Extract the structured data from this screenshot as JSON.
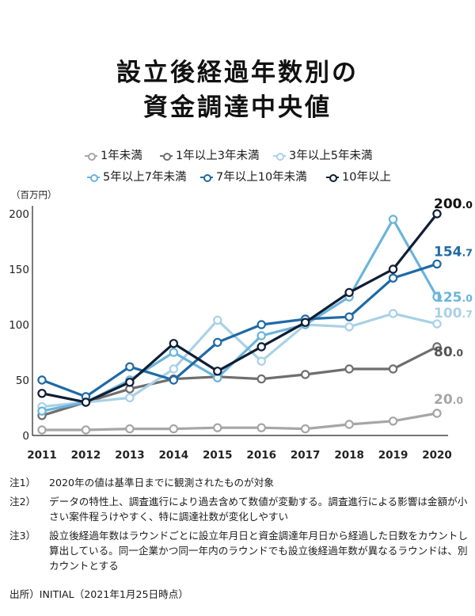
{
  "title_line1": "設立後経過年数別の",
  "title_line2": "資金調達中央値",
  "unit_label": "（百万円）",
  "chart_data": {
    "type": "line",
    "x": [
      "2011",
      "2012",
      "2013",
      "2014",
      "2015",
      "2016",
      "2017",
      "2018",
      "2019",
      "2020"
    ],
    "ylim": [
      0,
      200
    ],
    "yticks": [
      0,
      50,
      100,
      150,
      200
    ],
    "grid": false,
    "legend_position": "top",
    "series": [
      {
        "name": "1年未満",
        "color": "#a6a6a6",
        "values": [
          5,
          5,
          6,
          6,
          7,
          7,
          6,
          10,
          13,
          20
        ]
      },
      {
        "name": "1年以上3年未満",
        "color": "#6e6e6e",
        "values": [
          18,
          30,
          42,
          51,
          53,
          51,
          55,
          60,
          60,
          80
        ]
      },
      {
        "name": "3年以上5年未満",
        "color": "#a9d1e6",
        "values": [
          26,
          30,
          34,
          60,
          104,
          67,
          100,
          98,
          110,
          100.7
        ]
      },
      {
        "name": "5年以上7年未満",
        "color": "#6bb4db",
        "values": [
          22,
          30,
          50,
          75,
          52,
          90,
          100,
          125,
          195,
          125
        ]
      },
      {
        "name": "7年以上10年未満",
        "color": "#1f6aa5",
        "values": [
          50,
          35,
          62,
          50,
          84,
          100,
          105,
          107,
          142,
          154.7
        ]
      },
      {
        "name": "10年以上",
        "color": "#0f1e33",
        "values": [
          38,
          30,
          48,
          83,
          58,
          80,
          102,
          129,
          150,
          200
        ]
      }
    ],
    "end_labels": [
      {
        "series": "10年以上",
        "int": "200",
        "dec": ".0",
        "color": "#111111"
      },
      {
        "series": "7年以上10年未満",
        "int": "154",
        "dec": ".7",
        "color": "#1f6aa5"
      },
      {
        "series": "5年以上7年未満",
        "int": "125",
        "dec": ".0",
        "color": "#6bb4db"
      },
      {
        "series": "3年以上5年未満",
        "int": "100",
        "dec": ".7",
        "color": "#a9d1e6"
      },
      {
        "series": "1年以上3年未満",
        "int": "80",
        "dec": ".0",
        "color": "#555555"
      },
      {
        "series": "1年未満",
        "int": "20",
        "dec": ".0",
        "color": "#a6a6a6"
      }
    ]
  },
  "notes": [
    {
      "tag": "注1）",
      "text": "2020年の値は基準日までに観測されたものが対象"
    },
    {
      "tag": "注2）",
      "text": "データの特性上、調査進行により過去含めて数値が変動する。調査進行による影響は金額が小さい案件程うけやすく、特に調達社数が変化しやすい"
    },
    {
      "tag": "注3）",
      "text": "設立後経過年数はラウンドごとに設立年月日と資金調達年月日から経過した日数をカウントし算出している。同一企業かつ同一年内のラウンドでも設立後経過年数が異なるラウンドは、別カウントとする"
    }
  ],
  "source": "出所）INITIAL（2021年1月25日時点）"
}
